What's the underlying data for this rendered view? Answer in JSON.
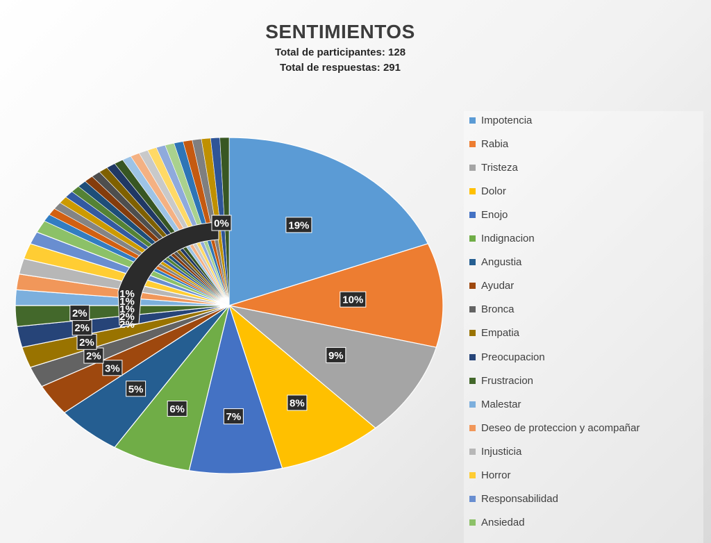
{
  "chart_data": {
    "type": "pie",
    "title": "SENTIMIENTOS",
    "subtitles": [
      "Total de participantes: 128",
      "Total de respuestas: 291"
    ],
    "legend_position": "right",
    "slices": [
      {
        "name": "Impotencia",
        "value": 19,
        "label": "19%",
        "color": "#5b9bd5"
      },
      {
        "name": "Rabia",
        "value": 10,
        "label": "10%",
        "color": "#ed7d31"
      },
      {
        "name": "Tristeza",
        "value": 9,
        "label": "9%",
        "color": "#a5a5a5"
      },
      {
        "name": "Dolor",
        "value": 8,
        "label": "8%",
        "color": "#ffc000"
      },
      {
        "name": "Enojo",
        "value": 7,
        "label": "7%",
        "color": "#4472c4"
      },
      {
        "name": "Indignacion",
        "value": 6,
        "label": "6%",
        "color": "#70ad47"
      },
      {
        "name": "Angustia",
        "value": 5,
        "label": "5%",
        "color": "#255e91"
      },
      {
        "name": "Ayudar",
        "value": 3,
        "label": "3%",
        "color": "#9e480e"
      },
      {
        "name": "Bronca",
        "value": 2,
        "label": "2%",
        "color": "#636363"
      },
      {
        "name": "Empatia",
        "value": 2,
        "label": "2%",
        "color": "#997300"
      },
      {
        "name": "Preocupacion",
        "value": 2,
        "label": "2%",
        "color": "#264478"
      },
      {
        "name": "Frustracion",
        "value": 2,
        "label": "2%",
        "color": "#43682b"
      },
      {
        "name": "Malestar",
        "value": 1.5,
        "label": "",
        "color": "#7cafdd"
      },
      {
        "name": "Deseo de proteccion y acompañar",
        "value": 1.5,
        "label": "",
        "color": "#f1975a"
      },
      {
        "name": "Injusticia",
        "value": 1.5,
        "label": "",
        "color": "#b7b7b7"
      },
      {
        "name": "Horror",
        "value": 1.5,
        "label": "",
        "color": "#ffcd33"
      },
      {
        "name": "Responsabilidad",
        "value": 1.2,
        "label": "",
        "color": "#698ed0"
      },
      {
        "name": "Ansiedad",
        "value": 1.2,
        "label": "",
        "color": "#8cc168"
      }
    ],
    "minor_slices_colors": [
      "#327dc2",
      "#d26012",
      "#848484",
      "#cc9a00",
      "#335aa1",
      "#548235",
      "#1e4e79",
      "#843c0c",
      "#4e4e4e",
      "#7f6000",
      "#203864",
      "#375623",
      "#9dc3e6",
      "#f4b183",
      "#c9c9c9",
      "#ffd966",
      "#8faadc",
      "#a9d18e",
      "#2e75b6",
      "#c55a11",
      "#7f7f7f",
      "#bf9000",
      "#2f5597",
      "#385723"
    ],
    "minor_slices_total": 16.6,
    "minor_slice_label": "0%",
    "stacked_small_labels": [
      "1%",
      "1%",
      "1%",
      "2%",
      "2%"
    ]
  }
}
